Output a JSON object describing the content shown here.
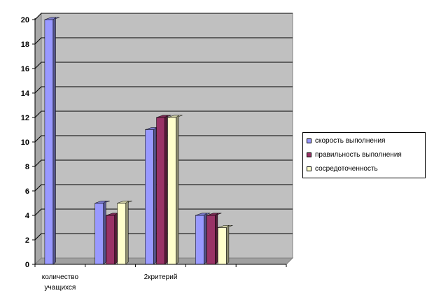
{
  "chart_data": {
    "type": "bar",
    "title": "",
    "xlabel": "",
    "ylabel": "",
    "ylim": [
      0,
      20
    ],
    "yticks": [
      0,
      2,
      4,
      6,
      8,
      10,
      12,
      14,
      16,
      18,
      20
    ],
    "grid": true,
    "legend_position": "right",
    "categories": [
      "количество учащихся",
      "",
      "2критерий",
      "",
      ""
    ],
    "series": [
      {
        "name": "скорость выполнения",
        "color": "#9999ff",
        "values": [
          20,
          5,
          11,
          4,
          null
        ]
      },
      {
        "name": "правильность выполнения",
        "color": "#993366",
        "values": [
          null,
          4,
          12,
          4,
          null
        ]
      },
      {
        "name": "сосредоточенность",
        "color": "#ffffcc",
        "values": [
          null,
          5,
          12,
          3,
          null
        ]
      }
    ],
    "plot_background": "#c0c0c0"
  }
}
